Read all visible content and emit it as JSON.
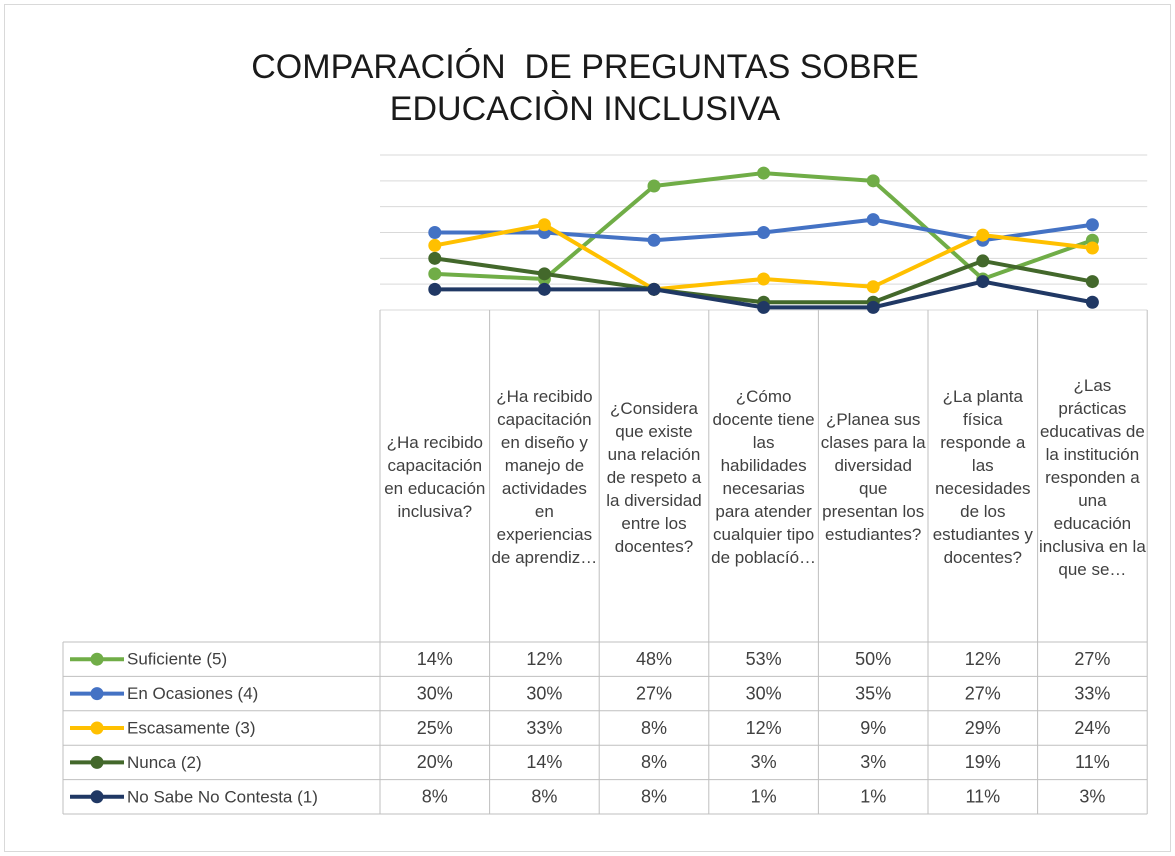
{
  "chart_data": {
    "type": "line",
    "title": [
      "COMPARACIÓN  DE PREGUNTAS SOBRE",
      "EDUCACIÒN INCLUSIVA"
    ],
    "categories": [
      "¿Ha recibido capacitación en educación inclusiva?",
      "¿Ha recibido capacitación en diseño y manejo de actividades en experiencias de aprendiz…",
      "¿Considera que existe una relación de respeto a la diversidad entre los docentes?",
      "¿Cómo docente tiene las habilidades necesarias para atender cualquier tipo de poblacíó…",
      "¿Planea sus clases para la diversidad que presentan los estudiantes?",
      "¿La planta física responde a las necesidades de los estudiantes y docentes?",
      "¿Las prácticas educativas de la institución responden a una educación inclusiva en la que se…"
    ],
    "series": [
      {
        "name": "Suficiente (5)",
        "color": "#70ad47",
        "values": [
          14,
          12,
          48,
          53,
          50,
          12,
          27
        ],
        "value_labels": [
          "14%",
          "12%",
          "48%",
          "53%",
          "50%",
          "12%",
          "27%"
        ]
      },
      {
        "name": "En Ocasiones (4)",
        "color": "#4472c4",
        "values": [
          30,
          30,
          27,
          30,
          35,
          27,
          33
        ],
        "value_labels": [
          "30%",
          "30%",
          "27%",
          "30%",
          "35%",
          "27%",
          "33%"
        ]
      },
      {
        "name": "Escasamente (3)",
        "color": "#ffc000",
        "values": [
          25,
          33,
          8,
          12,
          9,
          29,
          24
        ],
        "value_labels": [
          "25%",
          "33%",
          "8%",
          "12%",
          "9%",
          "29%",
          "24%"
        ]
      },
      {
        "name": "Nunca (2)",
        "color": "#43682b",
        "values": [
          20,
          14,
          8,
          3,
          3,
          19,
          11
        ],
        "value_labels": [
          "20%",
          "14%",
          "8%",
          "3%",
          "3%",
          "19%",
          "11%"
        ]
      },
      {
        "name": "No Sabe  No Contesta (1)",
        "color": "#203864",
        "values": [
          8,
          8,
          8,
          1,
          1,
          11,
          3
        ],
        "value_labels": [
          "8%",
          "8%",
          "8%",
          "1%",
          "1%",
          "11%",
          "3%"
        ]
      }
    ],
    "ylim": [
      0,
      60
    ],
    "yticks": [
      0,
      10,
      20,
      30,
      40,
      50,
      60
    ],
    "grid": true
  }
}
